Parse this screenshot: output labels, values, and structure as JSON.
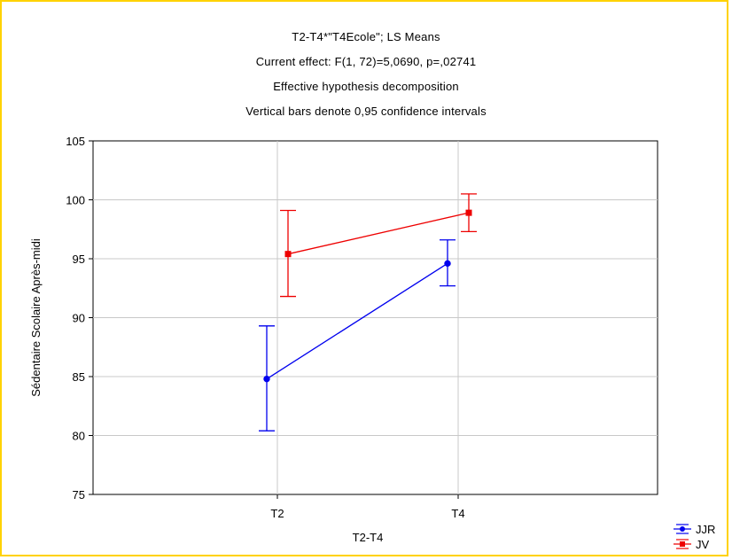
{
  "chart_data": {
    "type": "line",
    "title_lines": [
      "T2-T4*\"T4Ecole\"; LS Means",
      "Current effect: F(1, 72)=5,0690, p=,02741",
      "Effective hypothesis decomposition",
      "Vertical bars denote 0,95 confidence intervals"
    ],
    "xlabel": "T2-T4",
    "ylabel": "Sédentaire Scolaire Après-midi",
    "categories": [
      "T2",
      "T4"
    ],
    "ylim": [
      75,
      105
    ],
    "yticks": [
      "75",
      "80",
      "85",
      "90",
      "95",
      "100",
      "105"
    ],
    "grid": true,
    "legend_position": "bottom-right, outside plot",
    "series": [
      {
        "name": "JJR",
        "color": "#0000ee",
        "marker": "circle",
        "values": [
          84.8,
          94.6
        ],
        "ci_low": [
          80.4,
          92.7
        ],
        "ci_high": [
          89.3,
          96.6
        ]
      },
      {
        "name": "JV",
        "color": "#ee0000",
        "marker": "square",
        "values": [
          95.4,
          98.9
        ],
        "ci_low": [
          91.8,
          97.3
        ],
        "ci_high": [
          99.1,
          100.5
        ]
      }
    ]
  }
}
